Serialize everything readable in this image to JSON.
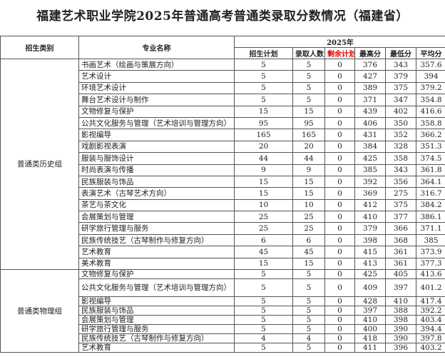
{
  "title": "福建艺术职业学院2025年普通高考普通类录取分数情况（福建省）",
  "headers": {
    "category": "招生类别",
    "major": "专业名称",
    "year": "2025年",
    "plan": "招生计划",
    "admitted": "录取人数",
    "remaining": "剩余计划",
    "max": "最高分",
    "min": "最低分",
    "avg": "平均分"
  },
  "colors": {
    "remaining_header": "#e00000"
  },
  "groups": [
    {
      "name": "普通类历史组",
      "rows": [
        [
          "书画艺术（绘画与策展方向）",
          "5",
          "5",
          "0",
          "376",
          "343",
          "357.6"
        ],
        [
          "艺术设计",
          "5",
          "5",
          "0",
          "427",
          "379",
          "394"
        ],
        [
          "环境艺术设计",
          "5",
          "5",
          "0",
          "389",
          "375",
          "379.2"
        ],
        [
          "舞台艺术设计与制作",
          "5",
          "5",
          "0",
          "371",
          "347",
          "354.8"
        ],
        [
          "文物修复与保护",
          "15",
          "15",
          "0",
          "439",
          "402",
          "416.6"
        ],
        [
          "公共文化服务与管理（艺术培训与管理方向）",
          "95",
          "95",
          "0",
          "406",
          "350",
          "358.8"
        ],
        [
          "影视编导",
          "165",
          "165",
          "0",
          "431",
          "352",
          "366.2"
        ],
        [
          "戏剧影视表演",
          "20",
          "20",
          "0",
          "384",
          "328",
          "351.3"
        ],
        [
          "服装与服饰设计",
          "44",
          "44",
          "0",
          "425",
          "358",
          "374.5"
        ],
        [
          "时尚表演与传播",
          "9",
          "9",
          "0",
          "385",
          "343",
          "361.8"
        ],
        [
          "民族服装与饰品",
          "15",
          "15",
          "0",
          "392",
          "356",
          "364.1"
        ],
        [
          "表演艺术（古琴艺术方向）",
          "15",
          "15",
          "0",
          "369",
          "275",
          "316.7"
        ],
        [
          "茶艺与茶文化",
          "10",
          "10",
          "0",
          "412",
          "375",
          "384.2"
        ],
        [
          "会展策划与管理",
          "25",
          "25",
          "0",
          "410",
          "377",
          "386.1"
        ],
        [
          "研学旅行管理与服务",
          "25",
          "25",
          "0",
          "379",
          "366",
          "371.1"
        ],
        [
          "民族传统技艺（古琴制作与修复方向）",
          "6",
          "6",
          "0",
          "398",
          "368",
          "385"
        ],
        [
          "艺术教育",
          "45",
          "45",
          "0",
          "415",
          "361",
          "373.9"
        ],
        [
          "美术教育",
          "15",
          "15",
          "0",
          "413",
          "361",
          "377.3"
        ]
      ]
    },
    {
      "name": "普通类物理组",
      "rows": [
        [
          "文物修复与保护",
          "5",
          "5",
          "0",
          "425",
          "405",
          "413.6"
        ],
        [
          "公共文化服务与管理（艺术培训与管理方向）",
          "5",
          "5",
          "0",
          "409",
          "397",
          "401.2"
        ],
        [
          "影视编导",
          "5",
          "5",
          "0",
          "428",
          "410",
          "417.4"
        ],
        [
          "民族服装与饰品",
          "5",
          "5",
          "0",
          "397",
          "388",
          "392.2"
        ],
        [
          "会展策划与管理",
          "5",
          "5",
          "0",
          "410",
          "398",
          "403.4"
        ],
        [
          "研学旅行管理与服务",
          "5",
          "5",
          "0",
          "400",
          "390",
          "394.4"
        ],
        [
          "民族传统技艺（古琴制作与修复方向）",
          "4",
          "4",
          "0",
          "418",
          "390",
          "397.8"
        ],
        [
          "艺术教育",
          "5",
          "5",
          "0",
          "411",
          "396",
          "403.2"
        ]
      ]
    }
  ]
}
